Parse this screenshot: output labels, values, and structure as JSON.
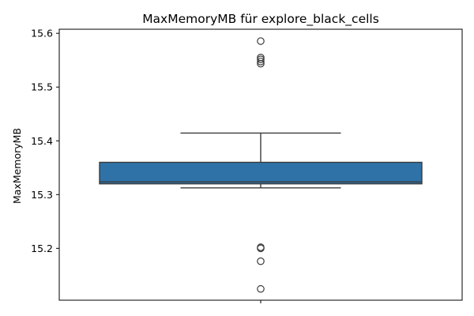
{
  "chart_data": {
    "type": "box",
    "title": "MaxMemoryMB für explore_black_cells",
    "xlabel": "",
    "ylabel": "MaxMemoryMB",
    "ylim": [
      15.1035,
      15.6076
    ],
    "yticks": [
      15.2,
      15.3,
      15.4,
      15.5,
      15.6
    ],
    "grid": false,
    "legend": "none",
    "box": {
      "q1": 15.32,
      "median": 15.3235,
      "q3": 15.36,
      "whisker_low": 15.3125,
      "whisker_high": 15.4145
    },
    "outliers": [
      15.5855,
      15.555,
      15.5515,
      15.5475,
      15.5435,
      15.202,
      15.2,
      15.176,
      15.1245
    ],
    "colors": {
      "box_fill": "#2f72a7",
      "line": "#3b3b3b",
      "axis": "#000000"
    }
  }
}
